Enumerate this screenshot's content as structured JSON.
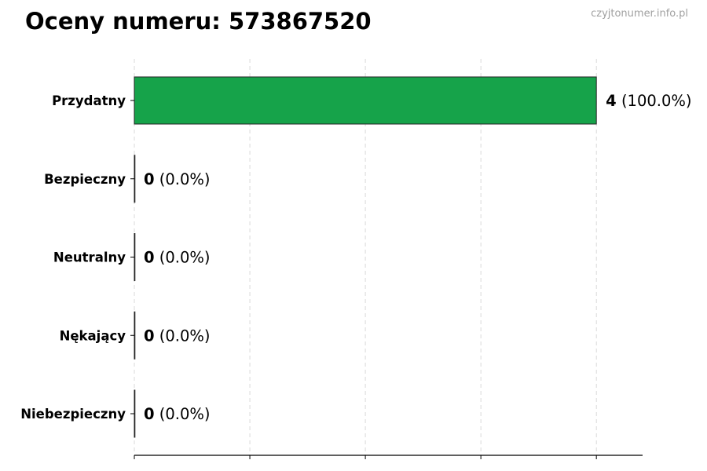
{
  "title": "Oceny numeru: 573867520",
  "watermark": "czyjtonumer.info.pl",
  "chart_data": {
    "type": "bar",
    "orientation": "horizontal",
    "title": "Oceny numeru: 573867520",
    "categories": [
      "Przydatny",
      "Bezpieczny",
      "Neutralny",
      "Nękający",
      "Niebezpieczny"
    ],
    "values": [
      4,
      0,
      0,
      0,
      0
    ],
    "data_labels": [
      {
        "count": "4",
        "pct": "(100.0%)"
      },
      {
        "count": "0",
        "pct": "(0.0%)"
      },
      {
        "count": "0",
        "pct": "(0.0%)"
      },
      {
        "count": "0",
        "pct": "(0.0%)"
      },
      {
        "count": "0",
        "pct": "(0.0%)"
      }
    ],
    "xlim": [
      0,
      4.4
    ],
    "xticks": [
      0,
      1,
      2,
      3,
      4
    ],
    "xtick_labels_shown": false,
    "grid": "vertical dashed",
    "bar_color": "#16a34a",
    "xlabel": "",
    "ylabel": ""
  }
}
